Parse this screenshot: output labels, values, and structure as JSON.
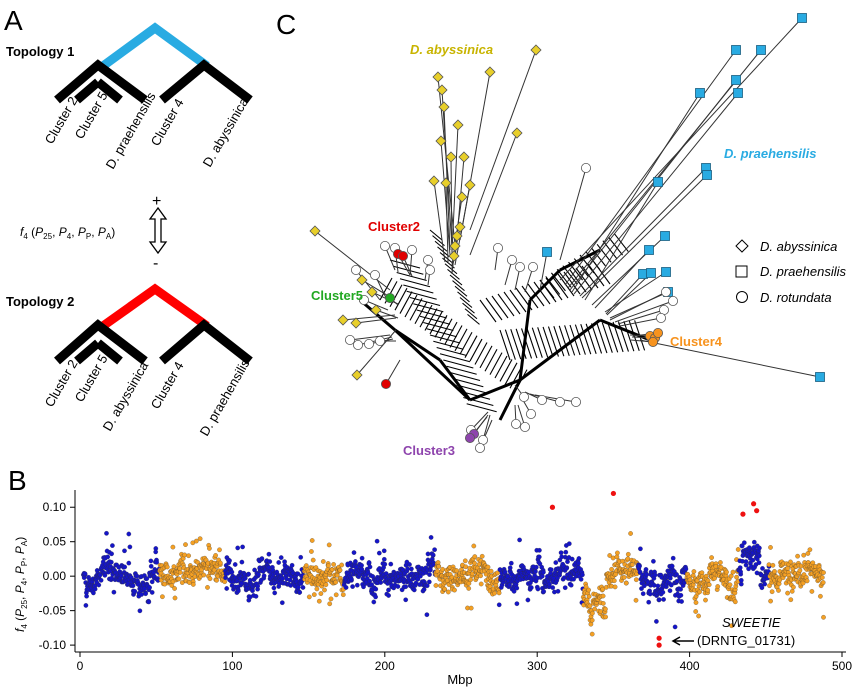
{
  "panels": {
    "a": {
      "letter": "A"
    },
    "b": {
      "letter": "B"
    },
    "c": {
      "letter": "C"
    }
  },
  "topology1": {
    "title": "Topology  1",
    "leaves": [
      "Cluster 2",
      "Cluster 5",
      "D. praehensilis",
      "Cluster 4",
      "D. abyssinica"
    ],
    "highlight_color": "#29abe2"
  },
  "topology2": {
    "title": "Topology  2",
    "leaves": [
      "Cluster 2",
      "Cluster 5",
      "D. abyssinica",
      "Cluster 4",
      "D. praehensilis"
    ],
    "highlight_color": "#ff0000"
  },
  "f4_stat": {
    "label_main": "f",
    "label_sub": "4",
    "label_args": "(P25, P4, PP, PA)",
    "plus": "+",
    "minus": "-"
  },
  "network": {
    "labels": {
      "abyssinica": "D. abyssinica",
      "praehensilis": "D. praehensilis",
      "cluster2": "Cluster2",
      "cluster5": "Cluster5",
      "cluster4": "Cluster4",
      "cluster3": "Cluster3"
    },
    "label_colors": {
      "abyssinica": "#c8b400",
      "praehensilis": "#29abe2",
      "cluster2": "#e00000",
      "cluster5": "#22a822",
      "cluster4": "#f7931e",
      "cluster3": "#8e44ad"
    },
    "legend": [
      {
        "shape": "diamond",
        "label": "D. abyssinica"
      },
      {
        "shape": "square",
        "label": "D. praehensilis"
      },
      {
        "shape": "circle",
        "label": "D. rotundata"
      }
    ]
  },
  "chart_data": {
    "type": "scatter",
    "xlabel": "Mbp",
    "ylabel": "f4 (P25, P4, PP, PA)",
    "xlim": [
      0,
      500
    ],
    "ylim": [
      -0.11,
      0.125
    ],
    "x_ticks": [
      "0",
      "100",
      "200",
      "300",
      "400",
      "500"
    ],
    "y_ticks": [
      "0.10",
      "0.05",
      "0.00",
      "-0.05",
      "-0.10"
    ],
    "series": [
      {
        "color": "#1515c8"
      },
      {
        "color": "#f4a024"
      },
      {
        "color": "#ee1111"
      }
    ],
    "chromosomes": [
      {
        "start": 2,
        "end": 52,
        "color": "blue"
      },
      {
        "start": 52,
        "end": 95,
        "color": "orange"
      },
      {
        "start": 95,
        "end": 147,
        "color": "blue"
      },
      {
        "start": 147,
        "end": 173,
        "color": "orange"
      },
      {
        "start": 173,
        "end": 233,
        "color": "blue"
      },
      {
        "start": 233,
        "end": 275,
        "color": "orange"
      },
      {
        "start": 275,
        "end": 330,
        "color": "blue"
      },
      {
        "start": 330,
        "end": 366,
        "color": "orange"
      },
      {
        "start": 366,
        "end": 398,
        "color": "blue"
      },
      {
        "start": 398,
        "end": 432,
        "color": "orange"
      },
      {
        "start": 432,
        "end": 452,
        "color": "blue"
      },
      {
        "start": 452,
        "end": 488,
        "color": "orange"
      }
    ],
    "outliers": [
      {
        "x": 310,
        "y": 0.1
      },
      {
        "x": 350,
        "y": 0.12
      },
      {
        "x": 435,
        "y": 0.09
      },
      {
        "x": 442,
        "y": 0.105
      },
      {
        "x": 444,
        "y": 0.095
      },
      {
        "x": 380,
        "y": -0.09
      },
      {
        "x": 380,
        "y": -0.1
      }
    ],
    "annotation": {
      "gene": "SWEETIE",
      "id": "(DRNTG_01731)",
      "x": 380,
      "y": -0.1
    }
  }
}
